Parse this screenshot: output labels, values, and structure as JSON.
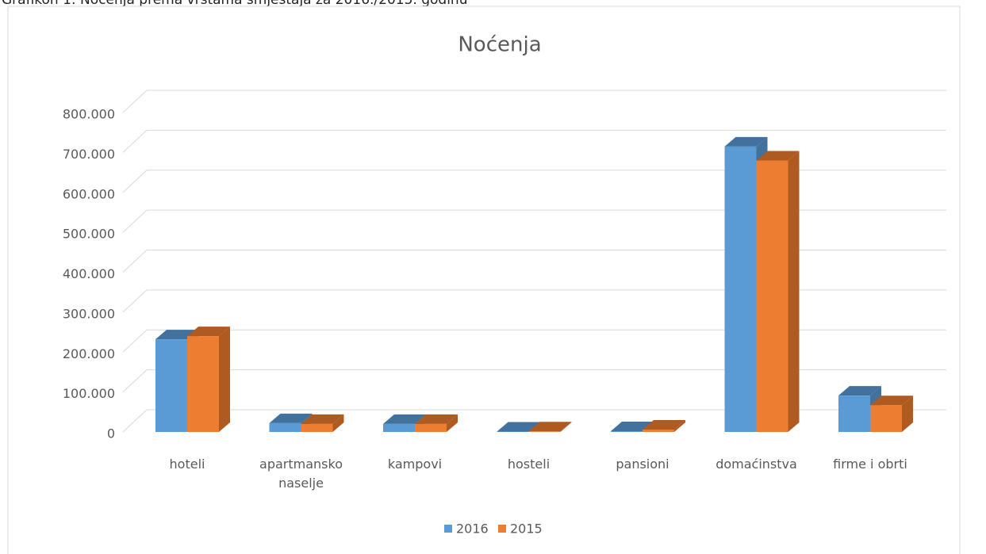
{
  "caption": "Grafikon 1: Noćenja prema vrstama smještaja za 2016./2015. godinu",
  "chart_data": {
    "type": "bar3d",
    "title": "Noćenja",
    "categories": [
      "hoteli",
      "apartmansko naselje",
      "kampovi",
      "hosteli",
      "pansioni",
      "domaćinstva",
      "firme i obrti"
    ],
    "series": [
      {
        "name": "2016",
        "color": "#5b9bd5",
        "values": [
          232000,
          22000,
          20000,
          1000,
          2000,
          715000,
          91000
        ]
      },
      {
        "name": "2015",
        "color": "#ed7d31",
        "values": [
          240000,
          20000,
          20000,
          1500,
          6000,
          680000,
          67000
        ]
      }
    ],
    "ylim": [
      0,
      800000
    ],
    "yticks": [
      0,
      {
        "value": 100000,
        "label": "100.000"
      },
      {
        "value": 200000,
        "label": "200.000"
      },
      {
        "value": 300000,
        "label": "300.000"
      },
      {
        "value": 400000,
        "label": "400.000"
      },
      {
        "value": 500000,
        "label": "500.000"
      },
      {
        "value": 600000,
        "label": "600.000"
      },
      {
        "value": 700000,
        "label": "700.000"
      },
      {
        "value": 800000,
        "label": "800.000"
      }
    ],
    "grid": true,
    "legend": "bottom"
  }
}
